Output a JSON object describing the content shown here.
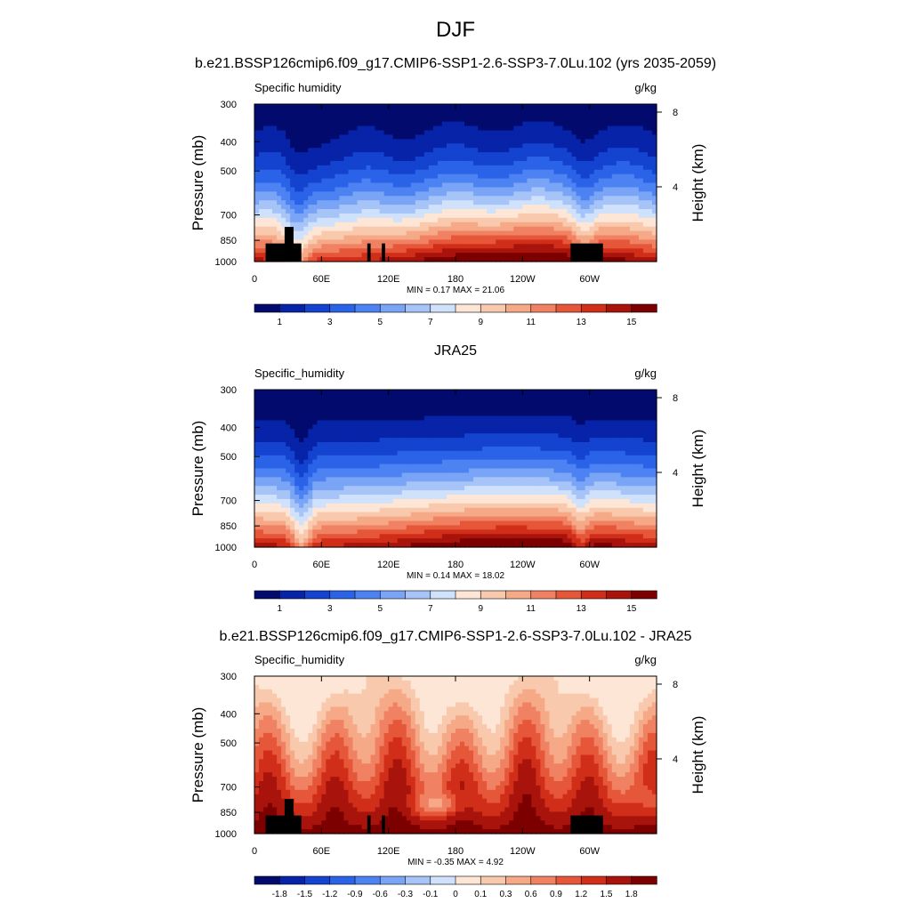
{
  "figure": {
    "season": "DJF"
  },
  "palette": {
    "absolute": [
      "#020a6e",
      "#0723a8",
      "#1343cf",
      "#2a63e8",
      "#4c82f2",
      "#7aa4f5",
      "#a6c4f7",
      "#cfe1fb",
      "#fde6d6",
      "#f9c9ae",
      "#f5a987",
      "#f08162",
      "#e65639",
      "#d12e1a",
      "#a8140c",
      "#7c0000"
    ],
    "difference": [
      "#020a6e",
      "#0723a8",
      "#1343cf",
      "#2a63e8",
      "#4c82f2",
      "#7aa4f5",
      "#a6c4f7",
      "#cfe1fb",
      "#fde6d6",
      "#f9c9ae",
      "#f5a987",
      "#f08162",
      "#e65639",
      "#d12e1a",
      "#a8140c",
      "#7c0000"
    ],
    "topography": "#000000"
  },
  "chart_data": [
    {
      "type": "heatmap",
      "title": "b.e21.BSSP126cmip6.f09_g17.CMIP6-SSP1-2.6-SSP3-7.0Lu.102 (yrs 2035-2059)",
      "variable": "Specific humidity",
      "units": "g/kg",
      "ylabel": "Pressure (mb)",
      "y2label": "Height (km)",
      "x_ticks": [
        "0",
        "60E",
        "120E",
        "180",
        "120W",
        "60W"
      ],
      "x_tick_lon": [
        0,
        60,
        120,
        180,
        240,
        300
      ],
      "xlim": [
        0,
        360
      ],
      "y_ticks": [
        "300",
        "400",
        "500",
        "700",
        "850",
        "1000"
      ],
      "y_tick_p": [
        300,
        400,
        500,
        700,
        850,
        1000
      ],
      "ylim": [
        300,
        1000
      ],
      "y_scale": "log",
      "y2_ticks": [
        "8",
        "4"
      ],
      "y2_tick_km": [
        8,
        4
      ],
      "stats": "MIN =   0.17  MAX =  21.06",
      "colorbar_labels": [
        "1",
        "3",
        "5",
        "7",
        "9",
        "11",
        "13",
        "15"
      ],
      "has_topography": true
    },
    {
      "type": "heatmap",
      "title": "JRA25",
      "variable": "Specific_humidity",
      "units": "g/kg",
      "ylabel": "Pressure (mb)",
      "y2label": "Height (km)",
      "x_ticks": [
        "0",
        "60E",
        "120E",
        "180",
        "120W",
        "60W"
      ],
      "x_tick_lon": [
        0,
        60,
        120,
        180,
        240,
        300
      ],
      "xlim": [
        0,
        360
      ],
      "y_ticks": [
        "300",
        "400",
        "500",
        "700",
        "850",
        "1000"
      ],
      "y_tick_p": [
        300,
        400,
        500,
        700,
        850,
        1000
      ],
      "ylim": [
        300,
        1000
      ],
      "y_scale": "log",
      "y2_ticks": [
        "8",
        "4"
      ],
      "y2_tick_km": [
        8,
        4
      ],
      "stats": "MIN =   0.14  MAX =  18.02",
      "colorbar_labels": [
        "1",
        "3",
        "5",
        "7",
        "9",
        "11",
        "13",
        "15"
      ],
      "has_topography": false
    },
    {
      "type": "heatmap",
      "title": "b.e21.BSSP126cmip6.f09_g17.CMIP6-SSP1-2.6-SSP3-7.0Lu.102 - JRA25",
      "variable": "Specific_humidity",
      "units": "g/kg",
      "ylabel": "Pressure (mb)",
      "y2label": "Height (km)",
      "x_ticks": [
        "0",
        "60E",
        "120E",
        "180",
        "120W",
        "60W"
      ],
      "x_tick_lon": [
        0,
        60,
        120,
        180,
        240,
        300
      ],
      "xlim": [
        0,
        360
      ],
      "y_ticks": [
        "300",
        "400",
        "500",
        "700",
        "850",
        "1000"
      ],
      "y_tick_p": [
        300,
        400,
        500,
        700,
        850,
        1000
      ],
      "ylim": [
        300,
        1000
      ],
      "y_scale": "log",
      "y2_ticks": [
        "8",
        "4"
      ],
      "y2_tick_km": [
        8,
        4
      ],
      "stats": "MIN =  -0.35  MAX =   4.92",
      "colorbar_labels": [
        "-1.8",
        "-1.5",
        "-1.2",
        "-0.9",
        "-0.6",
        "-0.3",
        "-0.1",
        "0",
        "0.1",
        "0.3",
        "0.6",
        "0.9",
        "1.2",
        "1.5",
        "1.8"
      ],
      "has_topography": true
    }
  ]
}
